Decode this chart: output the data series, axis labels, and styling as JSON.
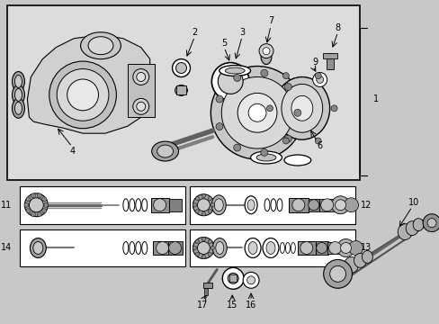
{
  "bg_color": "#c8c8c8",
  "box_bg": "#dcdcdc",
  "white": "#ffffff",
  "black": "#000000",
  "part_gray": "#888888",
  "light_gray": "#b8b8b8",
  "dark_gray": "#555555"
}
